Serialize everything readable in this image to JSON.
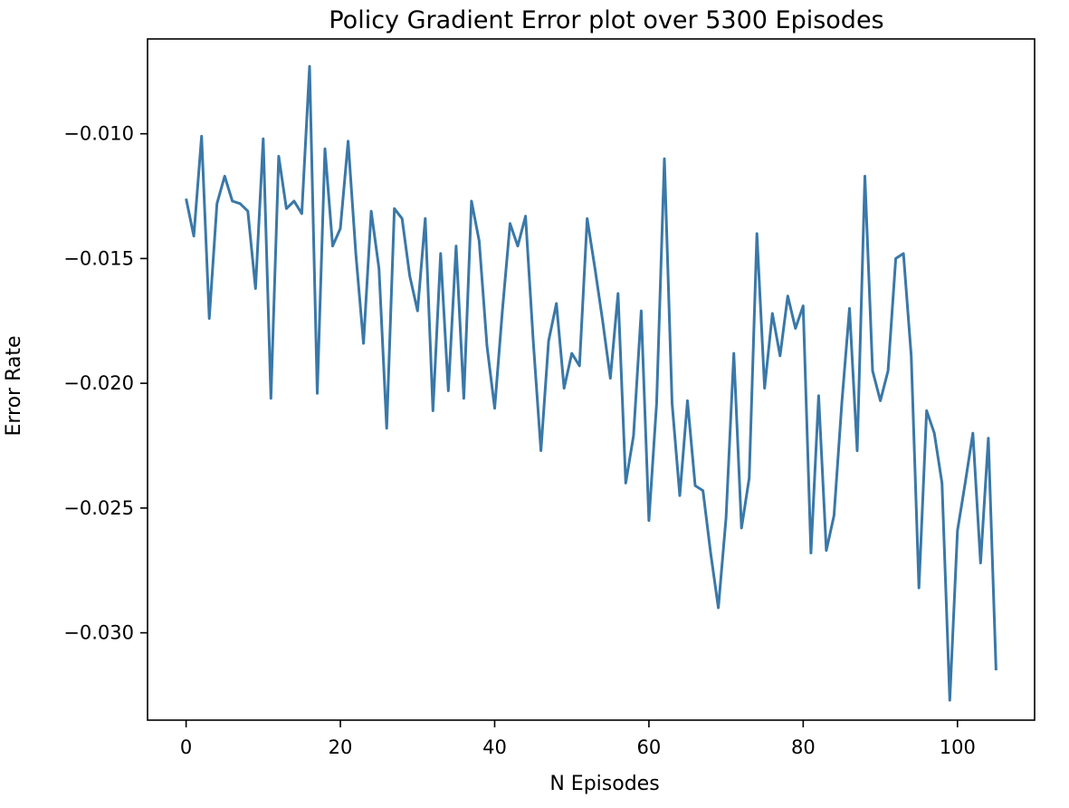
{
  "colors": {
    "line": "#3a78a8",
    "axes": "#000000",
    "background": "#ffffff"
  },
  "chart_data": {
    "type": "line",
    "title": "Policy Gradient Error plot over 5300 Episodes",
    "xlabel": "N Episodes",
    "ylabel": "Error Rate",
    "grid": false,
    "legend": "none",
    "xlim": [
      -5,
      110
    ],
    "ylim": [
      -0.0335,
      -0.0062
    ],
    "x_ticks": [
      0,
      20,
      40,
      60,
      80,
      100
    ],
    "x_tick_labels": [
      "0",
      "20",
      "40",
      "60",
      "80",
      "100"
    ],
    "y_ticks": [
      -0.01,
      -0.015,
      -0.02,
      -0.025,
      -0.03
    ],
    "y_tick_labels": [
      "−0.010",
      "−0.015",
      "−0.020",
      "−0.025",
      "−0.030"
    ],
    "series": [
      {
        "x": [
          0,
          1,
          2,
          3,
          4,
          5,
          6,
          7,
          8,
          9,
          10,
          11,
          12,
          13,
          14,
          15,
          16,
          17,
          18,
          19,
          20,
          21,
          22,
          23,
          24,
          25,
          26,
          27,
          28,
          29,
          30,
          31,
          32,
          33,
          34,
          35,
          36,
          37,
          38,
          39,
          40,
          41,
          42,
          43,
          44,
          45,
          46,
          47,
          48,
          49,
          50,
          51,
          52,
          53,
          54,
          55,
          56,
          57,
          58,
          59,
          60,
          61,
          62,
          63,
          64,
          65,
          66,
          67,
          68,
          69,
          70,
          71,
          72,
          73,
          74,
          75,
          76,
          77,
          78,
          79,
          80,
          81,
          82,
          83,
          84,
          85,
          86,
          87,
          88,
          89,
          90,
          91,
          92,
          93,
          94,
          95,
          96,
          97,
          98,
          99,
          100,
          101,
          102,
          103,
          104,
          105
        ],
        "y": [
          -0.0126,
          -0.0141,
          -0.0101,
          -0.0174,
          -0.0128,
          -0.0117,
          -0.0127,
          -0.0128,
          -0.0131,
          -0.0162,
          -0.0102,
          -0.0206,
          -0.0109,
          -0.013,
          -0.0127,
          -0.0132,
          -0.0073,
          -0.0204,
          -0.0106,
          -0.0145,
          -0.0138,
          -0.0103,
          -0.0148,
          -0.0184,
          -0.0131,
          -0.0154,
          -0.0218,
          -0.013,
          -0.0134,
          -0.0157,
          -0.0171,
          -0.0134,
          -0.0211,
          -0.0148,
          -0.0203,
          -0.0145,
          -0.0206,
          -0.0127,
          -0.0143,
          -0.0185,
          -0.021,
          -0.0171,
          -0.0136,
          -0.0145,
          -0.0133,
          -0.0183,
          -0.0227,
          -0.0183,
          -0.0168,
          -0.0202,
          -0.0188,
          -0.0193,
          -0.0134,
          -0.0154,
          -0.0175,
          -0.0198,
          -0.0164,
          -0.024,
          -0.0221,
          -0.0171,
          -0.0255,
          -0.0208,
          -0.011,
          -0.0208,
          -0.0245,
          -0.0207,
          -0.0241,
          -0.0243,
          -0.0268,
          -0.029,
          -0.0254,
          -0.0188,
          -0.0258,
          -0.0238,
          -0.014,
          -0.0202,
          -0.0172,
          -0.0189,
          -0.0165,
          -0.0178,
          -0.0169,
          -0.0268,
          -0.0205,
          -0.0267,
          -0.0253,
          -0.0208,
          -0.017,
          -0.0227,
          -0.0117,
          -0.0195,
          -0.0207,
          -0.0195,
          -0.015,
          -0.0148,
          -0.0189,
          -0.0282,
          -0.0211,
          -0.022,
          -0.024,
          -0.0327,
          -0.0259,
          -0.024,
          -0.022,
          -0.0272,
          -0.0222,
          -0.0315
        ]
      }
    ]
  }
}
